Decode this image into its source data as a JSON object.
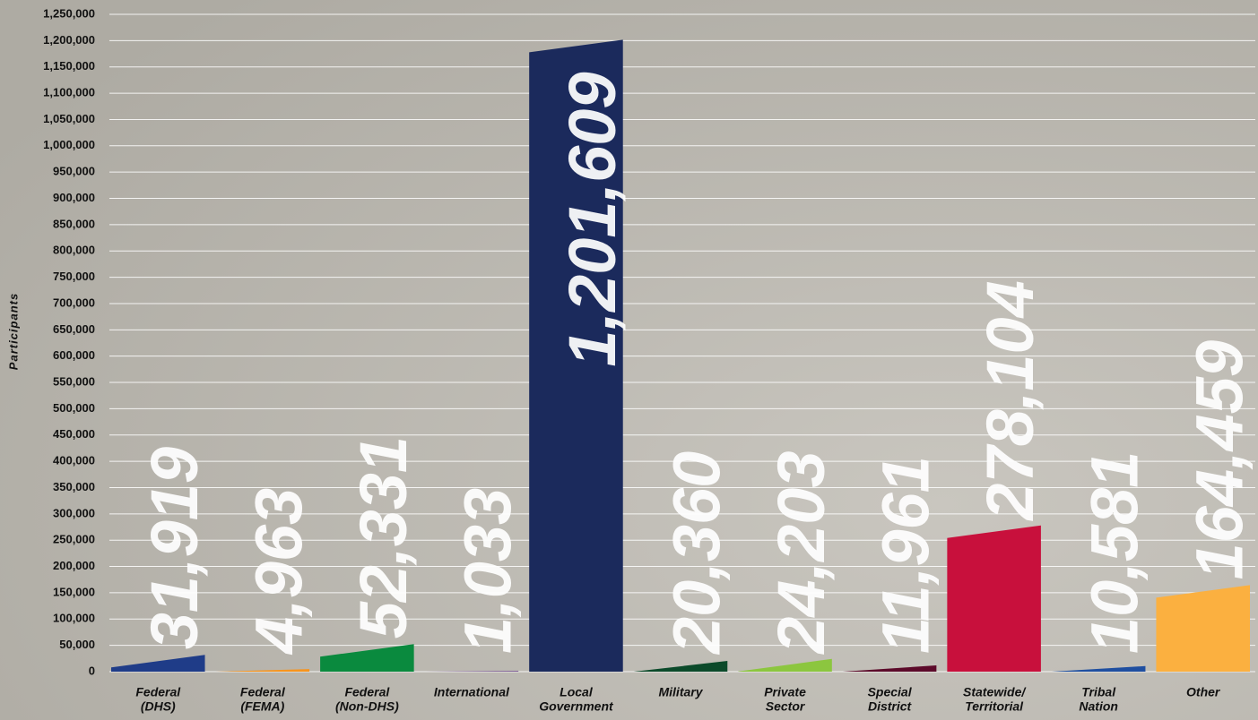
{
  "chart_data": {
    "type": "bar",
    "y_label": "Participants",
    "categories": [
      [
        "Federal",
        "(DHS)"
      ],
      [
        "Federal",
        "(FEMA)"
      ],
      [
        "Federal",
        "(Non-DHS)"
      ],
      [
        "International"
      ],
      [
        "Local",
        "Government"
      ],
      [
        "Military"
      ],
      [
        "Private",
        "Sector"
      ],
      [
        "Special",
        "District"
      ],
      [
        "Statewide/",
        "Territorial"
      ],
      [
        "Tribal",
        "Nation"
      ],
      [
        "Other"
      ]
    ],
    "values": [
      31919,
      4963,
      52331,
      1033,
      1201609,
      20360,
      24203,
      11961,
      278104,
      10581,
      164459
    ],
    "value_labels": [
      "31,919",
      "4,963",
      "52,331",
      "1,033",
      "1,201,609",
      "20,360",
      "24,203",
      "11,961",
      "278,104",
      "10,581",
      "164,459"
    ],
    "colors": [
      "#1f3c88",
      "#f7941d",
      "#0a8a3e",
      "#5b2a86",
      "#1b2a5c",
      "#0b4a2a",
      "#8cc63f",
      "#5c0a2a",
      "#c8103c",
      "#1f4fa0",
      "#fbb040"
    ],
    "ylim": [
      0,
      1250000
    ],
    "yticks": [
      0,
      {
        "value": 50000,
        "label": "50,000"
      },
      {
        "value": 100000,
        "label": "100,000"
      },
      {
        "value": 150000,
        "label": "150,000"
      },
      {
        "value": 200000,
        "label": "200,000"
      },
      {
        "value": 250000,
        "label": "250,000"
      },
      {
        "value": 300000,
        "label": "300,000"
      },
      {
        "value": 350000,
        "label": "350,000"
      },
      {
        "value": 400000,
        "label": "400,000"
      },
      {
        "value": 450000,
        "label": "450,000"
      },
      {
        "value": 500000,
        "label": "500,000"
      },
      {
        "value": 550000,
        "label": "550,000"
      },
      {
        "value": 600000,
        "label": "600,000"
      },
      {
        "value": 650000,
        "label": "650,000"
      },
      {
        "value": 700000,
        "label": "700,000"
      },
      {
        "value": 750000,
        "label": "750,000"
      },
      {
        "value": 800000,
        "label": "800,000"
      },
      {
        "value": 850000,
        "label": "850,000"
      },
      {
        "value": 900000,
        "label": "900,000"
      },
      {
        "value": 950000,
        "label": "950,000"
      },
      {
        "value": 1000000,
        "label": "1,000,000"
      },
      {
        "value": 1050000,
        "label": "1,050,000"
      },
      {
        "value": 1100000,
        "label": "1,100,000"
      },
      {
        "value": 1150000,
        "label": "1,150,000"
      },
      {
        "value": 1200000,
        "label": "1,200,000"
      },
      {
        "value": 1250000,
        "label": "1,250,000"
      }
    ],
    "grid": true
  }
}
